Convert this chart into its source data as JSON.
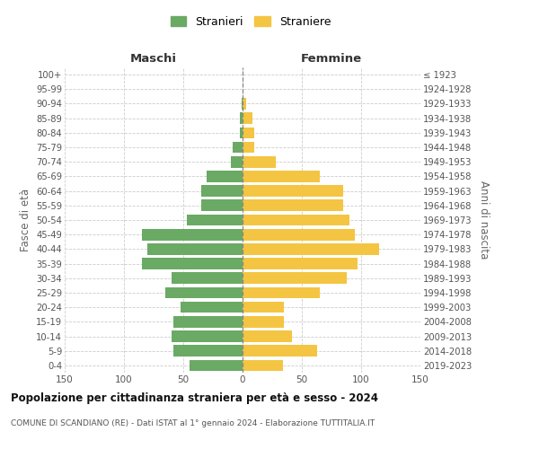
{
  "age_groups": [
    "0-4",
    "5-9",
    "10-14",
    "15-19",
    "20-24",
    "25-29",
    "30-34",
    "35-39",
    "40-44",
    "45-49",
    "50-54",
    "55-59",
    "60-64",
    "65-69",
    "70-74",
    "75-79",
    "80-84",
    "85-89",
    "90-94",
    "95-99",
    "100+"
  ],
  "birth_years": [
    "2019-2023",
    "2014-2018",
    "2009-2013",
    "2004-2008",
    "1999-2003",
    "1994-1998",
    "1989-1993",
    "1984-1988",
    "1979-1983",
    "1974-1978",
    "1969-1973",
    "1964-1968",
    "1959-1963",
    "1954-1958",
    "1949-1953",
    "1944-1948",
    "1939-1943",
    "1934-1938",
    "1929-1933",
    "1924-1928",
    "≤ 1923"
  ],
  "maschi": [
    45,
    58,
    60,
    58,
    52,
    65,
    60,
    85,
    80,
    85,
    47,
    35,
    35,
    30,
    10,
    8,
    2,
    2,
    1,
    0,
    0
  ],
  "femmine": [
    34,
    63,
    42,
    35,
    35,
    65,
    88,
    97,
    115,
    95,
    90,
    85,
    85,
    65,
    28,
    10,
    10,
    8,
    3,
    0,
    0
  ],
  "color_maschi": "#6aaa64",
  "color_femmine": "#f4c542",
  "title": "Popolazione per cittadinanza straniera per età e sesso - 2024",
  "subtitle": "COMUNE DI SCANDIANO (RE) - Dati ISTAT al 1° gennaio 2024 - Elaborazione TUTTITALIA.IT",
  "header_left": "Maschi",
  "header_right": "Femmine",
  "ylabel_left": "Fasce di età",
  "ylabel_right": "Anni di nascita",
  "legend_maschi": "Stranieri",
  "legend_femmine": "Straniere",
  "xlim": 150,
  "background_color": "#ffffff",
  "grid_color": "#cccccc"
}
